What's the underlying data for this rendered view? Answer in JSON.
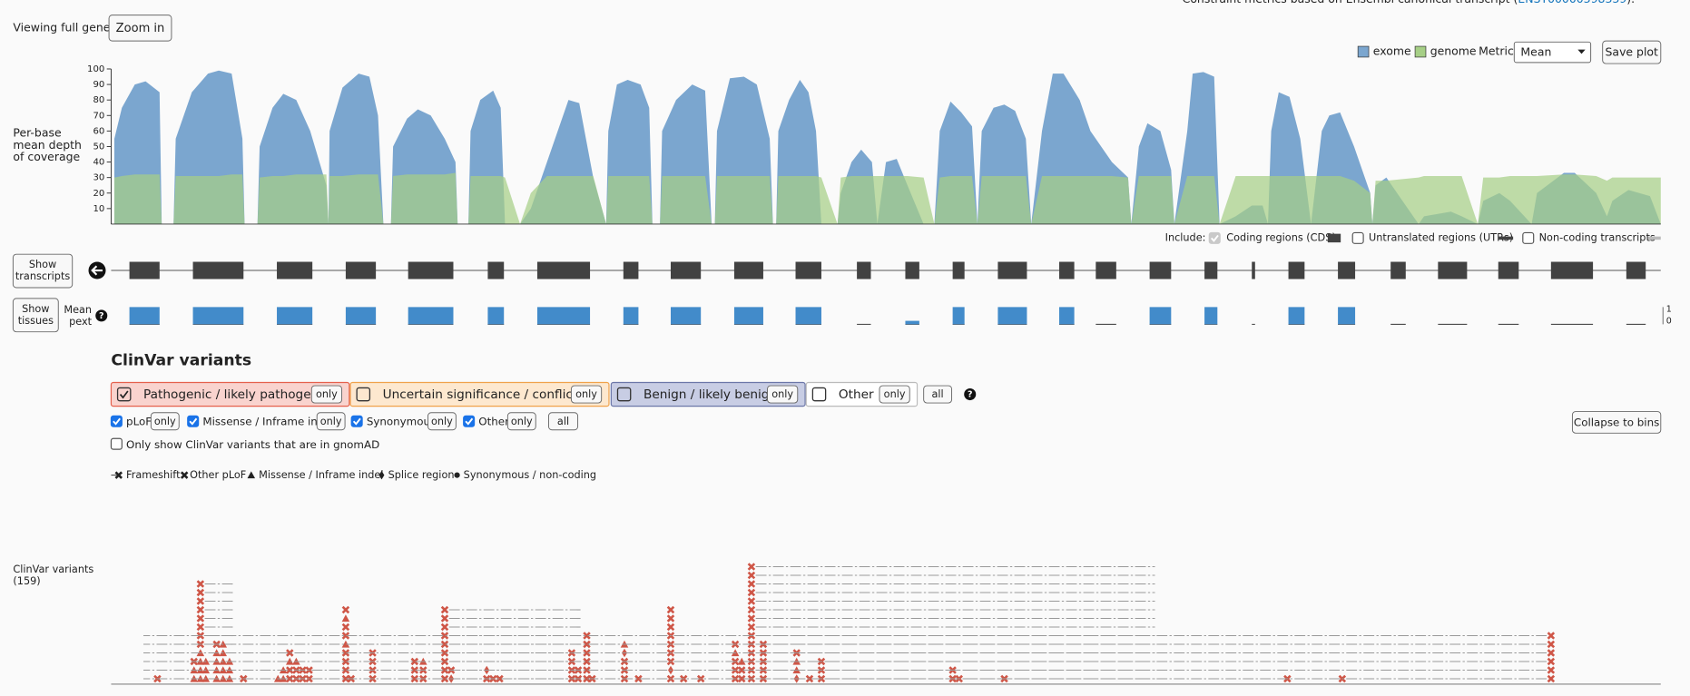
{
  "header": {
    "constraint_note": "Constraint metrics based on Ensembl canonical transcript (",
    "transcript_link": "ENST00000398339",
    "constraint_note_end": ").",
    "viewing": "Viewing full gene.",
    "zoom_button": "Zoom in"
  },
  "coverage": {
    "type": "area",
    "y_label": [
      "Per-base",
      "mean depth",
      "of coverage"
    ],
    "legend": {
      "exome": "exome",
      "genome": "genome"
    },
    "exome_color": "#7ba6cf",
    "genome_color": "#a6cf86",
    "metric_label": "Metric:",
    "metric_value": "Mean",
    "save_button": "Save plot",
    "xlim": [
      100,
      1540
    ],
    "ylim": [
      0,
      100
    ],
    "yticks": [
      10,
      20,
      30,
      40,
      50,
      60,
      70,
      80,
      90,
      100
    ],
    "x": [
      103,
      110,
      122,
      132,
      145,
      147,
      158,
      160,
      175,
      190,
      200,
      212,
      222,
      224,
      236,
      238,
      250,
      260,
      272,
      285,
      300,
      302,
      303,
      315,
      330,
      340,
      348,
      353,
      360,
      362,
      375,
      385,
      397,
      410,
      420,
      422,
      432,
      434,
      443,
      455,
      462,
      466,
      480,
      490,
      505,
      525,
      535,
      548,
      560,
      562,
      570,
      580,
      592,
      600,
      603,
      610,
      612,
      625,
      640,
      652,
      658,
      661,
      663,
      675,
      688,
      700,
      712,
      715,
      718,
      720,
      730,
      740,
      748,
      755,
      760,
      775,
      778,
      788,
      797,
      807,
      812,
      820,
      830,
      840,
      855,
      865,
      870,
      880,
      890,
      900,
      905,
      909,
      920,
      930,
      940,
      950,
      955,
      965,
      975,
      985,
      1000,
      1010,
      1030,
      1045,
      1048,
      1055,
      1063,
      1075,
      1085,
      1088,
      1100,
      1105,
      1115,
      1125,
      1130,
      1145,
      1160,
      1170,
      1175,
      1178,
      1185,
      1195,
      1205,
      1215,
      1225,
      1232,
      1242,
      1255,
      1270,
      1272,
      1275,
      1285,
      1300,
      1315,
      1320,
      1345,
      1355,
      1370,
      1375,
      1390,
      1400,
      1420,
      1425,
      1450,
      1460,
      1480,
      1490,
      1495,
      1510,
      1530,
      1540
    ],
    "exome": [
      55,
      75,
      90,
      92,
      85,
      0,
      0,
      55,
      85,
      97,
      99,
      97,
      55,
      0,
      0,
      50,
      75,
      84,
      80,
      60,
      25,
      0,
      60,
      88,
      97,
      95,
      70,
      0,
      0,
      50,
      68,
      74,
      70,
      55,
      40,
      0,
      0,
      60,
      80,
      86,
      75,
      0,
      0,
      10,
      40,
      80,
      78,
      30,
      0,
      60,
      90,
      93,
      90,
      75,
      0,
      0,
      60,
      80,
      90,
      86,
      0,
      0,
      60,
      94,
      95,
      90,
      55,
      0,
      0,
      60,
      80,
      93,
      85,
      60,
      0,
      0,
      20,
      40,
      48,
      40,
      0,
      40,
      42,
      25,
      0,
      0,
      60,
      79,
      72,
      63,
      0,
      60,
      75,
      77,
      73,
      55,
      0,
      60,
      97,
      97,
      80,
      60,
      40,
      30,
      0,
      50,
      65,
      60,
      35,
      0,
      60,
      97,
      98,
      95,
      0,
      5,
      12,
      12,
      0,
      60,
      85,
      82,
      55,
      0,
      60,
      70,
      72,
      50,
      20,
      0,
      25,
      30,
      15,
      0,
      5,
      8,
      5,
      0,
      15,
      20,
      15,
      0,
      20,
      33,
      33,
      20,
      5,
      15,
      22,
      18,
      0
    ],
    "genome": [
      30,
      31,
      32,
      32,
      32,
      0,
      0,
      31,
      31,
      31,
      31,
      32,
      32,
      0,
      0,
      30,
      31,
      31,
      32,
      32,
      32,
      0,
      31,
      31,
      32,
      32,
      32,
      0,
      0,
      31,
      32,
      32,
      32,
      32,
      33,
      0,
      0,
      31,
      31,
      31,
      31,
      30,
      0,
      20,
      31,
      31,
      31,
      31,
      0,
      31,
      31,
      31,
      31,
      31,
      0,
      0,
      31,
      31,
      31,
      31,
      0,
      0,
      31,
      31,
      31,
      31,
      31,
      0,
      0,
      31,
      31,
      31,
      31,
      31,
      30,
      0,
      30,
      31,
      31,
      31,
      31,
      31,
      31,
      31,
      30,
      0,
      30,
      31,
      31,
      31,
      0,
      31,
      31,
      31,
      31,
      31,
      0,
      31,
      31,
      31,
      31,
      31,
      31,
      30,
      0,
      31,
      31,
      31,
      31,
      0,
      31,
      31,
      31,
      31,
      0,
      31,
      31,
      31,
      31,
      31,
      31,
      31,
      31,
      31,
      31,
      31,
      31,
      28,
      20,
      0,
      28,
      28,
      29,
      30,
      31,
      31,
      31,
      0,
      30,
      30,
      31,
      31,
      31,
      32,
      32,
      31,
      28,
      30,
      30,
      30,
      30
    ]
  },
  "include": {
    "label": "Include:",
    "options": [
      {
        "label": "Coding regions (CDS)",
        "checked": true
      },
      {
        "label": "Untranslated regions (UTRs)",
        "checked": false
      },
      {
        "label": "Non-coding transcripts",
        "checked": false
      }
    ]
  },
  "transcript": {
    "show_transcripts": [
      "Show",
      "transcripts"
    ],
    "show_tissues": [
      "Show",
      "tissues"
    ],
    "pext_label": [
      "Mean",
      "pext"
    ],
    "help_icon": "?",
    "pext_axis": [
      "1",
      "0"
    ],
    "exon_color": "#424242",
    "pext_color": "#428bca",
    "exons": [
      [
        117,
        145
      ],
      [
        176,
        223
      ],
      [
        254,
        287
      ],
      [
        318,
        346
      ],
      [
        376,
        418
      ],
      [
        450,
        465
      ],
      [
        496,
        545
      ],
      [
        576,
        590
      ],
      [
        620,
        648
      ],
      [
        679,
        706
      ],
      [
        736,
        760
      ],
      [
        793,
        806
      ],
      [
        838,
        851
      ],
      [
        882,
        893
      ],
      [
        924,
        951
      ],
      [
        981,
        995
      ],
      [
        1015,
        1034
      ],
      [
        1065,
        1085
      ],
      [
        1116,
        1128
      ],
      [
        1160,
        1163
      ],
      [
        1194,
        1209
      ],
      [
        1240,
        1256
      ],
      [
        1289,
        1303
      ],
      [
        1333,
        1360
      ],
      [
        1389,
        1408
      ],
      [
        1438,
        1477
      ],
      [
        1508,
        1526
      ]
    ],
    "pext": [
      1,
      1,
      1,
      1,
      1,
      1,
      1,
      1,
      1,
      1,
      1,
      0,
      0.2,
      1,
      1,
      1,
      0,
      1,
      1,
      0,
      1,
      1,
      0,
      0,
      0,
      0,
      0
    ]
  },
  "clinvar": {
    "title": "ClinVar variants",
    "categories": [
      {
        "label": "Pathogenic / likely pathogenic",
        "only": "only",
        "checked": true,
        "fill": "#f9d3ce",
        "border": "#e5604c"
      },
      {
        "label": "Uncertain significance / conflicting",
        "only": "only",
        "checked": false,
        "fill": "#fde8cf",
        "border": "#f0a24a"
      },
      {
        "label": "Benign / likely benign",
        "only": "only",
        "checked": false,
        "fill": "#c8cde4",
        "border": "#6b76a8"
      },
      {
        "label": "Other",
        "only": "only",
        "checked": false,
        "fill": "#ffffff",
        "border": "#bbbbbb"
      }
    ],
    "all_button": "all",
    "consequences": [
      {
        "label": "pLoF",
        "only": "only",
        "checked": true
      },
      {
        "label": "Missense / Inframe indel",
        "only": "only",
        "checked": true
      },
      {
        "label": "Synonymous",
        "only": "only",
        "checked": true
      },
      {
        "label": "Other",
        "only": "only",
        "checked": true
      }
    ],
    "consequence_all": "all",
    "gnomad_only": {
      "label": "Only show ClinVar variants that are in gnomAD",
      "checked": false
    },
    "collapse_button": "Collapse to bins",
    "legend": [
      "Frameshift",
      "Other pLoF",
      "Missense / Inframe indel",
      "Splice region",
      "Synonymous / non-coding"
    ],
    "track_label": [
      "ClinVar variants",
      "(159)"
    ],
    "marker_color": "#cf5647",
    "variant_groups": [
      {
        "x": 143,
        "types": [
          "fs"
        ]
      },
      {
        "x": 177,
        "types": [
          "m",
          "m",
          "fs"
        ]
      },
      {
        "x": 183,
        "types": [
          "m",
          "m",
          "m",
          "m",
          "fs",
          "fs",
          "fs",
          "fs",
          "fs",
          "fs",
          "fs",
          "fs"
        ],
        "extent": 215
      },
      {
        "x": 188,
        "types": [
          "m",
          "m",
          "m"
        ]
      },
      {
        "x": 198,
        "types": [
          "m",
          "m",
          "m",
          "m",
          "fs"
        ]
      },
      {
        "x": 204,
        "types": [
          "m",
          "m",
          "m",
          "m",
          "m"
        ]
      },
      {
        "x": 210,
        "types": [
          "m",
          "m",
          "m"
        ]
      },
      {
        "x": 223,
        "types": [
          "fs"
        ]
      },
      {
        "x": 255,
        "types": [
          "m"
        ]
      },
      {
        "x": 260,
        "types": [
          "m",
          "m"
        ]
      },
      {
        "x": 266,
        "types": [
          "fs",
          "fs",
          "m",
          "fs"
        ]
      },
      {
        "x": 272,
        "types": [
          "fs",
          "fs",
          "m"
        ]
      },
      {
        "x": 278,
        "types": [
          "fs",
          "fs"
        ]
      },
      {
        "x": 284,
        "types": [
          "fs",
          "fs"
        ]
      },
      {
        "x": 318,
        "types": [
          "fs",
          "fs",
          "fs",
          "fs",
          "m",
          "fs",
          "fs",
          "m",
          "fs"
        ]
      },
      {
        "x": 323,
        "types": [
          "fs"
        ]
      },
      {
        "x": 343,
        "types": [
          "fs",
          "fs",
          "fs",
          "fs"
        ]
      },
      {
        "x": 382,
        "types": [
          "fs",
          "fs",
          "fs"
        ]
      },
      {
        "x": 390,
        "types": [
          "fs",
          "fs",
          "m"
        ]
      },
      {
        "x": 410,
        "types": [
          "fs",
          "fs",
          "fs",
          "fs",
          "fs",
          "fs",
          "fs",
          "fs",
          "fs"
        ],
        "extent": 537
      },
      {
        "x": 416,
        "types": [
          "s",
          "fs"
        ]
      },
      {
        "x": 449,
        "types": [
          "fs",
          "s"
        ]
      },
      {
        "x": 455,
        "types": [
          "fs"
        ]
      },
      {
        "x": 461,
        "types": [
          "fs"
        ]
      },
      {
        "x": 528,
        "types": [
          "fs",
          "fs",
          "fs",
          "fs"
        ]
      },
      {
        "x": 534,
        "types": [
          "fs",
          "fs"
        ]
      },
      {
        "x": 542,
        "types": [
          "fs",
          "fs",
          "fs",
          "fs",
          "fs",
          "fs"
        ]
      },
      {
        "x": 547,
        "types": [
          "fs"
        ]
      },
      {
        "x": 577,
        "types": [
          "fs",
          "fs",
          "fs",
          "s",
          "m"
        ]
      },
      {
        "x": 590,
        "types": [
          "fs"
        ]
      },
      {
        "x": 620,
        "types": [
          "fs",
          "s",
          "fs",
          "fs",
          "fs",
          "fs",
          "fs",
          "fs",
          "fs"
        ]
      },
      {
        "x": 632,
        "types": [
          "fs"
        ]
      },
      {
        "x": 648,
        "types": [
          "fs"
        ]
      },
      {
        "x": 680,
        "types": [
          "fs",
          "fs",
          "fs",
          "m",
          "fs"
        ]
      },
      {
        "x": 686,
        "types": [
          "fs",
          "fs",
          "m"
        ]
      },
      {
        "x": 695,
        "types": [
          "fs",
          "fs",
          "fs",
          "fs",
          "fs",
          "fs",
          "fs",
          "fs",
          "fs",
          "fs",
          "fs",
          "fs",
          "fs",
          "fs"
        ],
        "extent": 1070
      },
      {
        "x": 706,
        "types": [
          "fs",
          "fs",
          "fs",
          "fs",
          "fs"
        ]
      },
      {
        "x": 737,
        "types": [
          "s",
          "m",
          "m",
          "fs"
        ]
      },
      {
        "x": 749,
        "types": [
          "fs"
        ]
      },
      {
        "x": 760,
        "types": [
          "fs",
          "fs",
          "fs"
        ]
      },
      {
        "x": 882,
        "types": [
          "fs",
          "fs"
        ]
      },
      {
        "x": 888,
        "types": [
          "fs"
        ]
      },
      {
        "x": 930,
        "types": [
          "fs"
        ]
      },
      {
        "x": 1193,
        "types": [
          "fs"
        ]
      },
      {
        "x": 1244,
        "types": [
          "fs"
        ]
      },
      {
        "x": 1438,
        "types": [
          "fs",
          "fs",
          "fs",
          "fs",
          "fs",
          "fs"
        ],
        "extent": 130
      }
    ]
  }
}
